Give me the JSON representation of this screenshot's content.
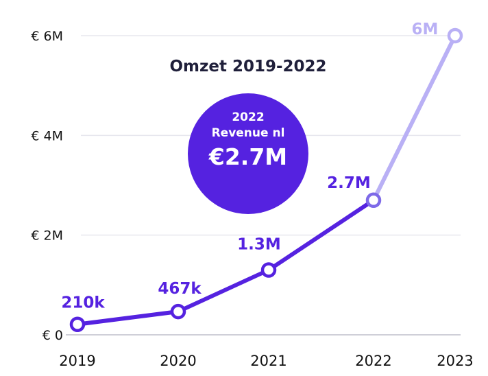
{
  "chart_data": {
    "type": "line",
    "title": "Omzet 2019-2022",
    "categories": [
      "2019",
      "2020",
      "2021",
      "2022",
      "2023"
    ],
    "values": [
      0.21,
      0.467,
      1.3,
      2.7,
      6.0
    ],
    "data_labels": [
      "210k",
      "467k",
      "1.3M",
      "2.7M",
      "6M"
    ],
    "projected_from_index": 3,
    "y_ticks": [
      {
        "value": 0,
        "label": "€ 0"
      },
      {
        "value": 2,
        "label": "€ 2M"
      },
      {
        "value": 4,
        "label": "€ 4M"
      },
      {
        "value": 6,
        "label": "€ 6M"
      }
    ],
    "ylim": [
      0,
      6
    ],
    "xlabel": "",
    "ylabel": "",
    "grid": true,
    "callout": {
      "line1": "2022",
      "line2": "Revenue nl",
      "value": "€2.7M"
    },
    "colors": {
      "actual": "#5522e0",
      "projected": "#b9b0f5",
      "badge": "#5522e0",
      "grid": "#e7e7ee",
      "axis": "#cfcfd8"
    }
  }
}
